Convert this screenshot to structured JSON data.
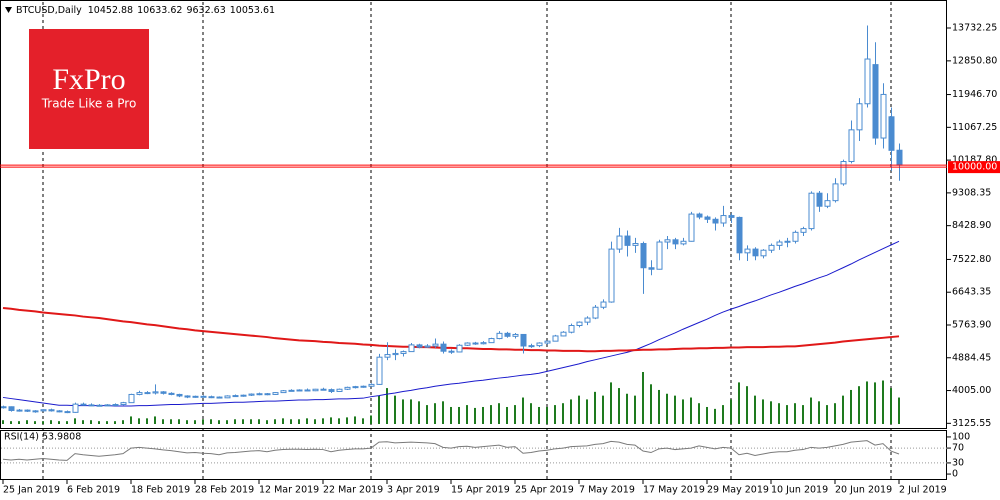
{
  "chart_data": {
    "type": "candlestick",
    "title": "BTCUSD,Daily",
    "color": "#4a8bd0",
    "categories": [
      "25 Jan 2019",
      null,
      null,
      null,
      null,
      null,
      null,
      null,
      "6 Feb 2019",
      null,
      null,
      null,
      null,
      null,
      null,
      null,
      "18 Feb 2019",
      null,
      null,
      null,
      null,
      null,
      null,
      null,
      "28 Feb 2019",
      null,
      null,
      null,
      null,
      null,
      null,
      null,
      "12 Mar 2019",
      null,
      null,
      null,
      null,
      null,
      null,
      null,
      "22 Mar 2019",
      null,
      null,
      null,
      null,
      null,
      null,
      null,
      "3 Apr 2019",
      null,
      null,
      null,
      null,
      null,
      null,
      null,
      "15 Apr 2019",
      null,
      null,
      null,
      null,
      null,
      null,
      null,
      "25 Apr 2019",
      null,
      null,
      null,
      null,
      null,
      null,
      null,
      "7 May 2019",
      null,
      null,
      null,
      null,
      null,
      null,
      null,
      "17 May 2019",
      null,
      null,
      null,
      null,
      null,
      null,
      null,
      "29 May 2019",
      null,
      null,
      null,
      null,
      null,
      null,
      null,
      "10 Jun 2019",
      null,
      null,
      null,
      null,
      null,
      null,
      null,
      "20 Jun 2019",
      null,
      null,
      null,
      null,
      null,
      null,
      null,
      "2 Jul 2019"
    ],
    "candles": [
      [
        3560,
        3600,
        3520,
        3570
      ],
      [
        3570,
        3580,
        3440,
        3470
      ],
      [
        3470,
        3510,
        3440,
        3480
      ],
      [
        3480,
        3500,
        3430,
        3450
      ],
      [
        3450,
        3480,
        3410,
        3460
      ],
      [
        3460,
        3500,
        3440,
        3490
      ],
      [
        3490,
        3520,
        3440,
        3460
      ],
      [
        3460,
        3480,
        3420,
        3440
      ],
      [
        3440,
        3470,
        3400,
        3420
      ],
      [
        3420,
        3680,
        3410,
        3640
      ],
      [
        3640,
        3680,
        3600,
        3620
      ],
      [
        3620,
        3660,
        3590,
        3610
      ],
      [
        3610,
        3640,
        3580,
        3600
      ],
      [
        3600,
        3640,
        3590,
        3620
      ],
      [
        3620,
        3660,
        3600,
        3630
      ],
      [
        3630,
        3700,
        3610,
        3680
      ],
      [
        3680,
        3920,
        3670,
        3900
      ],
      [
        3900,
        4000,
        3880,
        3950
      ],
      [
        3950,
        3990,
        3910,
        3940
      ],
      [
        3940,
        4170,
        3900,
        3970
      ],
      [
        3970,
        3990,
        3900,
        3930
      ],
      [
        3930,
        3960,
        3880,
        3900
      ],
      [
        3900,
        3920,
        3830,
        3860
      ],
      [
        3860,
        3880,
        3800,
        3830
      ],
      [
        3830,
        3870,
        3810,
        3850
      ],
      [
        3850,
        3880,
        3820,
        3840
      ],
      [
        3840,
        3870,
        3800,
        3830
      ],
      [
        3830,
        3850,
        3790,
        3810
      ],
      [
        3810,
        3880,
        3800,
        3860
      ],
      [
        3860,
        3900,
        3850,
        3870
      ],
      [
        3870,
        3900,
        3840,
        3880
      ],
      [
        3880,
        3930,
        3860,
        3910
      ],
      [
        3910,
        3950,
        3880,
        3920
      ],
      [
        3920,
        3940,
        3880,
        3900
      ],
      [
        3900,
        3960,
        3890,
        3950
      ],
      [
        3950,
        4020,
        3940,
        4000
      ],
      [
        4000,
        4040,
        3980,
        4010
      ],
      [
        4010,
        4040,
        3990,
        4020
      ],
      [
        4020,
        4060,
        3990,
        4000
      ],
      [
        4000,
        4050,
        3990,
        4040
      ],
      [
        4040,
        4080,
        4010,
        4030
      ],
      [
        4030,
        4060,
        3940,
        3980
      ],
      [
        3980,
        4060,
        3970,
        4040
      ],
      [
        4040,
        4110,
        4020,
        4090
      ],
      [
        4090,
        4130,
        4060,
        4110
      ],
      [
        4110,
        4140,
        4080,
        4120
      ],
      [
        4120,
        4200,
        4110,
        4170
      ],
      [
        4170,
        4990,
        4160,
        4900
      ],
      [
        4900,
        5300,
        4820,
        4970
      ],
      [
        4970,
        5110,
        4820,
        5000
      ],
      [
        5000,
        5080,
        4920,
        5050
      ],
      [
        5050,
        5280,
        5040,
        5230
      ],
      [
        5230,
        5260,
        5140,
        5170
      ],
      [
        5170,
        5250,
        5150,
        5200
      ],
      [
        5200,
        5400,
        5150,
        5250
      ],
      [
        5250,
        5320,
        5000,
        5060
      ],
      [
        5060,
        5110,
        4990,
        5040
      ],
      [
        5040,
        5250,
        5030,
        5220
      ],
      [
        5220,
        5300,
        5200,
        5280
      ],
      [
        5280,
        5310,
        5230,
        5260
      ],
      [
        5260,
        5330,
        5240,
        5290
      ],
      [
        5290,
        5420,
        5280,
        5400
      ],
      [
        5400,
        5600,
        5380,
        5540
      ],
      [
        5540,
        5580,
        5420,
        5460
      ],
      [
        5460,
        5550,
        5400,
        5510
      ],
      [
        5510,
        5520,
        5000,
        5200
      ],
      [
        5200,
        5260,
        5150,
        5210
      ],
      [
        5210,
        5300,
        5170,
        5280
      ],
      [
        5280,
        5350,
        5240,
        5330
      ],
      [
        5330,
        5500,
        5320,
        5470
      ],
      [
        5470,
        5600,
        5460,
        5570
      ],
      [
        5570,
        5800,
        5540,
        5750
      ],
      [
        5750,
        5860,
        5700,
        5840
      ],
      [
        5840,
        6000,
        5760,
        5950
      ],
      [
        5950,
        6300,
        5920,
        6240
      ],
      [
        6240,
        6450,
        6190,
        6380
      ],
      [
        6380,
        8000,
        6360,
        7800
      ],
      [
        7800,
        8370,
        7700,
        8150
      ],
      [
        8150,
        8300,
        7600,
        7900
      ],
      [
        7900,
        8100,
        7700,
        7950
      ],
      [
        7950,
        8000,
        6600,
        7300
      ],
      [
        7300,
        7500,
        7100,
        7260
      ],
      [
        7260,
        8050,
        7250,
        7990
      ],
      [
        7990,
        8150,
        7800,
        8050
      ],
      [
        8050,
        8100,
        7800,
        7940
      ],
      [
        7940,
        8100,
        7900,
        8010
      ],
      [
        8010,
        8800,
        8000,
        8740
      ],
      [
        8740,
        8780,
        8600,
        8660
      ],
      [
        8660,
        8700,
        8500,
        8600
      ],
      [
        8600,
        8650,
        8300,
        8500
      ],
      [
        8500,
        8960,
        8400,
        8700
      ],
      [
        8700,
        8760,
        8500,
        8650
      ],
      [
        8650,
        8670,
        7500,
        7700
      ],
      [
        7700,
        7900,
        7480,
        7800
      ],
      [
        7800,
        7850,
        7500,
        7620
      ],
      [
        7620,
        7800,
        7550,
        7770
      ],
      [
        7770,
        7950,
        7700,
        7900
      ],
      [
        7900,
        8050,
        7780,
        7990
      ],
      [
        7990,
        8100,
        7850,
        8010
      ],
      [
        8010,
        8300,
        7950,
        8250
      ],
      [
        8250,
        8400,
        8150,
        8350
      ],
      [
        8350,
        9350,
        8300,
        9300
      ],
      [
        9300,
        9360,
        8800,
        8950
      ],
      [
        8950,
        9300,
        8900,
        9100
      ],
      [
        9100,
        9700,
        9050,
        9550
      ],
      [
        9550,
        10200,
        9500,
        10150
      ],
      [
        10150,
        11250,
        10100,
        11000
      ],
      [
        11000,
        11850,
        10700,
        11700
      ],
      [
        11700,
        13800,
        11600,
        12900
      ],
      [
        12750,
        13350,
        10600,
        10780
      ],
      [
        10780,
        12250,
        10500,
        11950
      ],
      [
        11350,
        11600,
        9900,
        10450
      ],
      [
        10452.88,
        10633.62,
        9632.63,
        10053.61
      ]
    ],
    "series": [
      {
        "color": "#1a1acc",
        "values": [
          3820,
          3790,
          3760,
          3730,
          3700,
          3670,
          3640,
          3610,
          3610,
          3600,
          3600,
          3600,
          3600,
          3600,
          3590,
          3590,
          3590,
          3600,
          3600,
          3610,
          3620,
          3630,
          3630,
          3640,
          3650,
          3660,
          3660,
          3670,
          3680,
          3690,
          3690,
          3700,
          3710,
          3720,
          3720,
          3730,
          3740,
          3750,
          3750,
          3760,
          3760,
          3770,
          3780,
          3780,
          3790,
          3800,
          3840,
          3870,
          3910,
          3940,
          3980,
          4010,
          4050,
          4080,
          4120,
          4150,
          4180,
          4200,
          4230,
          4260,
          4280,
          4310,
          4340,
          4360,
          4390,
          4420,
          4440,
          4470,
          4520,
          4570,
          4620,
          4670,
          4720,
          4780,
          4830,
          4880,
          4930,
          4980,
          5030,
          5090,
          5180,
          5270,
          5370,
          5460,
          5550,
          5650,
          5740,
          5830,
          5920,
          6020,
          6110,
          6190,
          6260,
          6340,
          6410,
          6490,
          6570,
          6640,
          6720,
          6800,
          6870,
          6950,
          7030,
          7100,
          7200,
          7300,
          7400,
          7510,
          7610,
          7710,
          7810,
          7910,
          8010
        ]
      },
      {
        "color": "#e01818",
        "values": [
          6220,
          6200,
          6170,
          6150,
          6130,
          6100,
          6080,
          6060,
          6040,
          6020,
          5990,
          5970,
          5950,
          5920,
          5890,
          5860,
          5840,
          5810,
          5780,
          5760,
          5730,
          5700,
          5670,
          5650,
          5620,
          5600,
          5580,
          5560,
          5540,
          5520,
          5500,
          5480,
          5460,
          5440,
          5410,
          5390,
          5370,
          5350,
          5340,
          5330,
          5310,
          5300,
          5280,
          5270,
          5260,
          5240,
          5230,
          5210,
          5200,
          5190,
          5180,
          5180,
          5170,
          5170,
          5160,
          5150,
          5150,
          5140,
          5140,
          5130,
          5120,
          5120,
          5110,
          5110,
          5100,
          5100,
          5090,
          5090,
          5080,
          5080,
          5070,
          5070,
          5070,
          5060,
          5060,
          5070,
          5070,
          5080,
          5080,
          5090,
          5100,
          5100,
          5110,
          5110,
          5120,
          5130,
          5130,
          5140,
          5140,
          5150,
          5150,
          5160,
          5160,
          5170,
          5170,
          5170,
          5180,
          5180,
          5190,
          5190,
          5210,
          5230,
          5250,
          5270,
          5290,
          5320,
          5340,
          5360,
          5380,
          5400,
          5420,
          5440,
          5460
        ]
      }
    ],
    "volume": {
      "color": "#1e7a1e",
      "values": [
        4,
        3,
        3,
        4,
        3,
        3,
        4,
        3,
        3,
        6,
        4,
        4,
        3,
        3,
        3,
        4,
        8,
        6,
        6,
        8,
        5,
        5,
        5,
        4,
        4,
        5,
        5,
        4,
        4,
        5,
        5,
        5,
        5,
        4,
        5,
        6,
        5,
        5,
        6,
        5,
        6,
        7,
        6,
        7,
        8,
        6,
        9,
        30,
        38,
        30,
        26,
        26,
        24,
        20,
        22,
        24,
        18,
        18,
        20,
        17,
        18,
        20,
        22,
        18,
        20,
        28,
        22,
        18,
        18,
        20,
        22,
        26,
        30,
        26,
        34,
        30,
        44,
        38,
        32,
        30,
        55,
        42,
        36,
        32,
        30,
        26,
        28,
        22,
        18,
        16,
        20,
        26,
        44,
        40,
        30,
        26,
        24,
        22,
        20,
        22,
        20,
        28,
        24,
        20,
        22,
        30,
        36,
        40,
        45,
        44,
        46,
        38,
        28
      ]
    },
    "ylim": [
      3000,
      14430
    ],
    "yticks": [
      3125.55,
      {
        "value": 4005,
        "label": "4005.00"
      },
      4884.45,
      {
        "value": 5763.9,
        "label": "5763.90"
      },
      6643.35,
      {
        "value": 7522.8,
        "label": "7522.80"
      },
      {
        "value": 8428.9,
        "label": "8428.90"
      },
      9308.35,
      {
        "value": 10187.8,
        "label": "10187.80"
      },
      11067.25,
      {
        "value": 11946.7,
        "label": "11946.70"
      },
      {
        "value": 12850.8,
        "label": "12850.80"
      },
      13732.25
    ],
    "price_line": {
      "value": 10000,
      "label": "10000.00",
      "color": "#ff0000"
    },
    "rsi": {
      "label": "RSI(14) 53.9808",
      "color": "#7a7a7a",
      "ylim": [
        -16,
        116
      ],
      "yticks": [
        0,
        30,
        70,
        100
      ],
      "values": [
        40,
        38,
        40,
        38,
        40,
        42,
        40,
        38,
        37,
        55,
        52,
        50,
        48,
        50,
        52,
        55,
        70,
        72,
        70,
        68,
        65,
        63,
        60,
        57,
        58,
        56,
        55,
        52,
        57,
        58,
        60,
        62,
        63,
        60,
        64,
        66,
        67,
        67,
        66,
        67,
        66,
        60,
        64,
        66,
        68,
        68,
        70,
        86,
        87,
        84,
        85,
        86,
        85,
        84,
        82,
        72,
        70,
        74,
        75,
        72,
        74,
        76,
        78,
        72,
        74,
        56,
        58,
        62,
        64,
        68,
        70,
        74,
        75,
        76,
        80,
        82,
        88,
        86,
        80,
        78,
        62,
        58,
        68,
        70,
        66,
        68,
        70,
        76,
        72,
        68,
        72,
        70,
        52,
        56,
        50,
        54,
        58,
        60,
        60,
        64,
        66,
        72,
        70,
        72,
        76,
        80,
        86,
        88,
        90,
        78,
        82,
        62,
        53.9808
      ]
    }
  },
  "logo": {
    "brand": "FxPro",
    "tagline": "Trade Like a Pro"
  }
}
